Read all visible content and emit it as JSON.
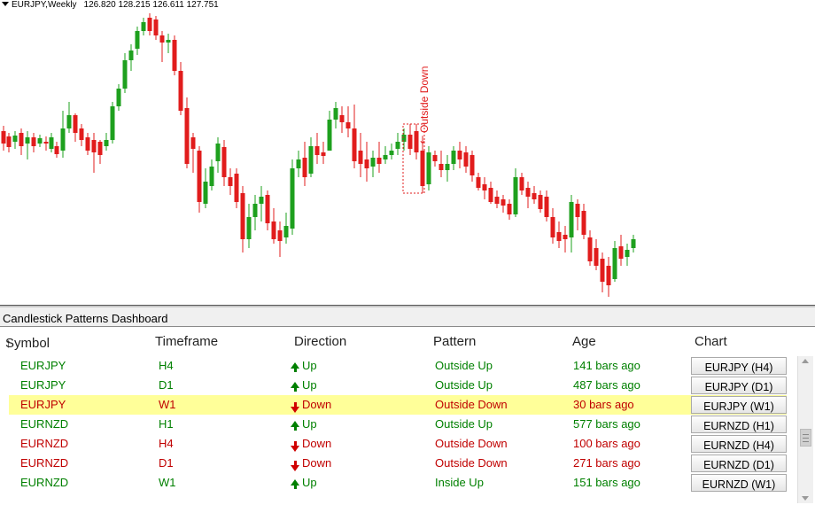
{
  "chart": {
    "symbol": "EURJPY,Weekly",
    "ohlc": "126.820 128.215 126.611 127.751",
    "annotation": "Outside Down",
    "up_color": "#1ea01e",
    "down_color": "#e11c1c"
  },
  "dashboard": {
    "title": "Candlestick Patterns Dashboard",
    "columns": {
      "symbol": "Symbol",
      "timeframe": "Timeframe",
      "direction": "Direction",
      "pattern": "Pattern",
      "age": "Age",
      "chart": "Chart"
    },
    "rows": [
      {
        "symbol": "EURJPY",
        "timeframe": "H4",
        "direction": "Up",
        "pattern": "Outside Up",
        "age": "141 bars ago",
        "chart": "EURJPY (H4)"
      },
      {
        "symbol": "EURJPY",
        "timeframe": "D1",
        "direction": "Up",
        "pattern": "Outside Up",
        "age": "487 bars ago",
        "chart": "EURJPY (D1)"
      },
      {
        "symbol": "EURJPY",
        "timeframe": "W1",
        "direction": "Down",
        "pattern": "Outside Down",
        "age": "30 bars ago",
        "chart": "EURJPY (W1)"
      },
      {
        "symbol": "EURNZD",
        "timeframe": "H1",
        "direction": "Up",
        "pattern": "Outside Up",
        "age": "577 bars ago",
        "chart": "EURNZD (H1)"
      },
      {
        "symbol": "EURNZD",
        "timeframe": "H4",
        "direction": "Down",
        "pattern": "Outside Down",
        "age": "100 bars ago",
        "chart": "EURNZD (H4)"
      },
      {
        "symbol": "EURNZD",
        "timeframe": "D1",
        "direction": "Down",
        "pattern": "Outside Down",
        "age": "271 bars ago",
        "chart": "EURNZD (D1)"
      },
      {
        "symbol": "EURNZD",
        "timeframe": "W1",
        "direction": "Up",
        "pattern": "Inside Up",
        "age": "151 bars ago",
        "chart": "EURNZD (W1)"
      }
    ],
    "highlight_color": "#ffff99"
  }
}
